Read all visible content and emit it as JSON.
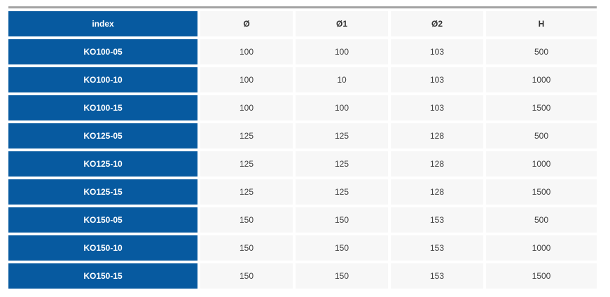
{
  "chart_data": {
    "type": "table",
    "columns": [
      "index",
      "Ø",
      "Ø1",
      "Ø2",
      "H"
    ],
    "rows": [
      [
        "KO100-05",
        "100",
        "100",
        "103",
        "500"
      ],
      [
        "KO100-10",
        "100",
        "10",
        "103",
        "1000"
      ],
      [
        "KO100-15",
        "100",
        "100",
        "103",
        "1500"
      ],
      [
        "KO125-05",
        "125",
        "125",
        "128",
        "500"
      ],
      [
        "KO125-10",
        "125",
        "125",
        "128",
        "1000"
      ],
      [
        "KO125-15",
        "125",
        "125",
        "128",
        "1500"
      ],
      [
        "KO150-05",
        "150",
        "150",
        "153",
        "500"
      ],
      [
        "KO150-10",
        "150",
        "150",
        "153",
        "1000"
      ],
      [
        "KO150-15",
        "150",
        "150",
        "153",
        "1500"
      ]
    ],
    "layout": {
      "row_header_column": "index",
      "grid": "cells separated by white gaps",
      "legend_position": "none"
    }
  },
  "colors": {
    "row_header_bg": "#075aa0",
    "row_header_text": "#ffffff",
    "cell_bg": "#f7f7f7",
    "cell_text": "#404040",
    "column_header_text": "#333333",
    "top_divider": "#a3a3a3"
  }
}
